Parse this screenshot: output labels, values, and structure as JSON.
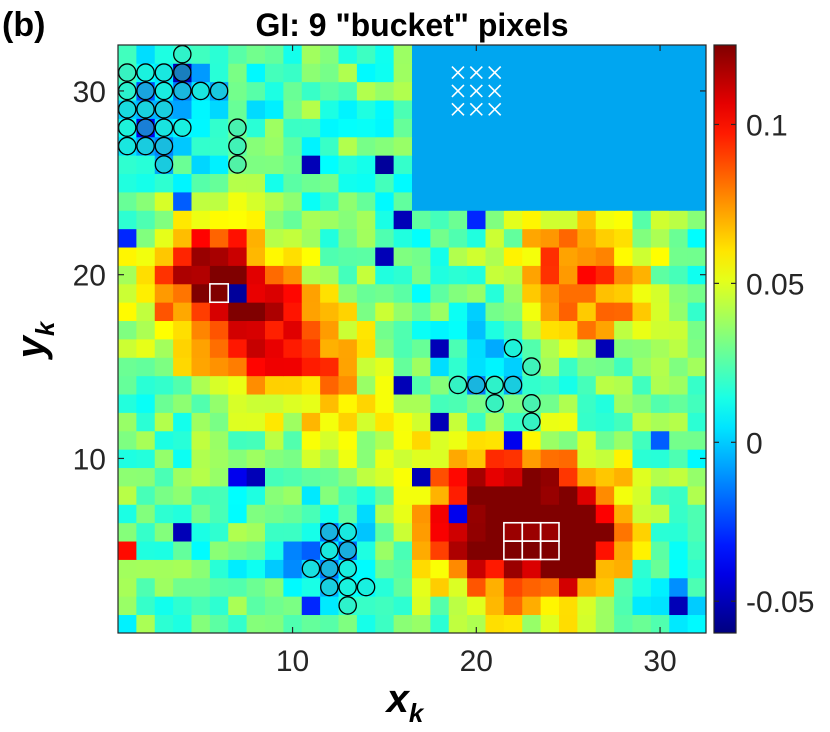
{
  "panel_label": "(b)",
  "chart_data": {
    "type": "heatmap",
    "title": "GI: 9 \"bucket\" pixels",
    "xlabel": "x",
    "xlabel_sub": "k",
    "ylabel": "y",
    "ylabel_sub": "k",
    "xlim": [
      0.5,
      32.5
    ],
    "ylim": [
      0.5,
      32.5
    ],
    "grid_size": 32,
    "xticks": [
      10,
      20,
      30
    ],
    "yticks": [
      10,
      20,
      30
    ],
    "colormap": "jet",
    "clim": [
      -0.06,
      0.125
    ],
    "colorbar": {
      "location": "right",
      "ticks": [
        -0.05,
        0,
        0.05,
        0.1
      ],
      "tick_labels": [
        "-0.05",
        "0",
        "0.05",
        "0.1"
      ]
    },
    "masked_region": {
      "x": [
        17,
        32
      ],
      "y": [
        24,
        32
      ],
      "value": 0.0,
      "note_color": "#00a6f0"
    },
    "hot_spots": [
      {
        "x": 6,
        "y": 19,
        "value": 0.1,
        "r": 2.8
      },
      {
        "x": 9,
        "y": 17,
        "value": 0.06,
        "r": 2.5
      },
      {
        "x": 11,
        "y": 15,
        "value": 0.07,
        "r": 2.8
      },
      {
        "x": 5,
        "y": 21,
        "value": 0.06,
        "r": 2.0
      },
      {
        "x": 15,
        "y": 11,
        "value": 0.04,
        "r": 2.2
      },
      {
        "x": 23,
        "y": 6,
        "value": 0.12,
        "r": 3.0
      },
      {
        "x": 20,
        "y": 7,
        "value": 0.09,
        "r": 2.6
      },
      {
        "x": 26,
        "y": 6,
        "value": 0.1,
        "r": 2.2
      },
      {
        "x": 26,
        "y": 19,
        "value": 0.09,
        "r": 2.6
      },
      {
        "x": 24,
        "y": 21,
        "value": 0.05,
        "r": 1.8
      }
    ],
    "cold_spots": [
      {
        "x": 12,
        "y": 5,
        "value": -0.01,
        "r": 2.0
      },
      {
        "x": 21,
        "y": 15,
        "value": -0.008,
        "r": 2.2
      },
      {
        "x": 3,
        "y": 29,
        "value": -0.01,
        "r": 2.5
      },
      {
        "x": 30,
        "y": 3,
        "value": -0.005,
        "r": 2.0
      }
    ],
    "outlier_pixels": [
      {
        "x": 7,
        "y": 19,
        "value": -0.055
      },
      {
        "x": 6,
        "y": 19,
        "value": 0.125
      },
      {
        "x": 22,
        "y": 5,
        "value": 0.125
      },
      {
        "x": 23,
        "y": 5,
        "value": 0.125
      },
      {
        "x": 24,
        "y": 5,
        "value": 0.125
      },
      {
        "x": 22,
        "y": 6,
        "value": 0.12
      },
      {
        "x": 23,
        "y": 6,
        "value": 0.12
      },
      {
        "x": 24,
        "y": 6,
        "value": 0.12
      },
      {
        "x": 4,
        "y": 31,
        "value": -0.05
      },
      {
        "x": 2,
        "y": 28,
        "value": -0.04
      },
      {
        "x": 11,
        "y": 26,
        "value": -0.05
      },
      {
        "x": 15,
        "y": 26,
        "value": -0.055
      },
      {
        "x": 16,
        "y": 23,
        "value": -0.05
      },
      {
        "x": 1,
        "y": 22,
        "value": -0.03
      },
      {
        "x": 15,
        "y": 21,
        "value": -0.05
      },
      {
        "x": 28,
        "y": 25,
        "value": -0.05
      },
      {
        "x": 29,
        "y": 25,
        "value": -0.05
      },
      {
        "x": 27,
        "y": 26,
        "value": -0.04
      },
      {
        "x": 29,
        "y": 31,
        "value": -0.04
      },
      {
        "x": 30,
        "y": 25,
        "value": -0.03
      },
      {
        "x": 18,
        "y": 16,
        "value": -0.05
      },
      {
        "x": 27,
        "y": 16,
        "value": -0.05
      },
      {
        "x": 16,
        "y": 14,
        "value": -0.05
      },
      {
        "x": 18,
        "y": 12,
        "value": -0.05
      },
      {
        "x": 22,
        "y": 11,
        "value": -0.04
      },
      {
        "x": 7,
        "y": 9,
        "value": -0.04
      },
      {
        "x": 8,
        "y": 9,
        "value": -0.05
      },
      {
        "x": 17,
        "y": 9,
        "value": -0.05
      },
      {
        "x": 19,
        "y": 7,
        "value": -0.04
      },
      {
        "x": 4,
        "y": 6,
        "value": -0.05
      },
      {
        "x": 11,
        "y": 2,
        "value": -0.03
      },
      {
        "x": 31,
        "y": 2,
        "value": -0.05
      },
      {
        "x": 30,
        "y": 11,
        "value": -0.02
      },
      {
        "x": 1,
        "y": 5,
        "value": 0.1
      },
      {
        "x": 20,
        "y": 23,
        "value": -0.03
      },
      {
        "x": 4,
        "y": 24,
        "value": -0.02
      }
    ],
    "bucket_pixels": [
      {
        "x": 19,
        "y": 29
      },
      {
        "x": 20,
        "y": 29
      },
      {
        "x": 21,
        "y": 29
      },
      {
        "x": 19,
        "y": 30
      },
      {
        "x": 20,
        "y": 30
      },
      {
        "x": 21,
        "y": 30
      },
      {
        "x": 19,
        "y": 31
      },
      {
        "x": 20,
        "y": 31
      },
      {
        "x": 21,
        "y": 31
      }
    ],
    "highlighted_squares": [
      {
        "x": 6,
        "y": 19
      },
      {
        "x": 22,
        "y": 6
      },
      {
        "x": 23,
        "y": 6
      },
      {
        "x": 24,
        "y": 6
      },
      {
        "x": 22,
        "y": 5
      },
      {
        "x": 23,
        "y": 5
      },
      {
        "x": 24,
        "y": 5
      }
    ],
    "circled_pixels": [
      {
        "x": 1,
        "y": 31
      },
      {
        "x": 2,
        "y": 31
      },
      {
        "x": 3,
        "y": 31
      },
      {
        "x": 4,
        "y": 32
      },
      {
        "x": 4,
        "y": 31
      },
      {
        "x": 1,
        "y": 30
      },
      {
        "x": 2,
        "y": 30
      },
      {
        "x": 3,
        "y": 30
      },
      {
        "x": 4,
        "y": 30
      },
      {
        "x": 5,
        "y": 30
      },
      {
        "x": 6,
        "y": 30
      },
      {
        "x": 1,
        "y": 29
      },
      {
        "x": 2,
        "y": 29
      },
      {
        "x": 3,
        "y": 29
      },
      {
        "x": 1,
        "y": 28
      },
      {
        "x": 2,
        "y": 28
      },
      {
        "x": 3,
        "y": 28
      },
      {
        "x": 4,
        "y": 28
      },
      {
        "x": 7,
        "y": 28
      },
      {
        "x": 1,
        "y": 27
      },
      {
        "x": 2,
        "y": 27
      },
      {
        "x": 3,
        "y": 27
      },
      {
        "x": 7,
        "y": 27
      },
      {
        "x": 3,
        "y": 26
      },
      {
        "x": 7,
        "y": 26
      },
      {
        "x": 22,
        "y": 16
      },
      {
        "x": 23,
        "y": 15
      },
      {
        "x": 19,
        "y": 14
      },
      {
        "x": 20,
        "y": 14
      },
      {
        "x": 21,
        "y": 14
      },
      {
        "x": 22,
        "y": 14
      },
      {
        "x": 21,
        "y": 13
      },
      {
        "x": 23,
        "y": 13
      },
      {
        "x": 23,
        "y": 12
      },
      {
        "x": 12,
        "y": 6
      },
      {
        "x": 13,
        "y": 6
      },
      {
        "x": 12,
        "y": 5
      },
      {
        "x": 13,
        "y": 5
      },
      {
        "x": 12,
        "y": 4
      },
      {
        "x": 13,
        "y": 4
      },
      {
        "x": 11,
        "y": 4
      },
      {
        "x": 12,
        "y": 3
      },
      {
        "x": 13,
        "y": 3
      },
      {
        "x": 14,
        "y": 3
      },
      {
        "x": 13,
        "y": 2
      }
    ],
    "noise_seed": 7,
    "noise_amplitude": 0.018,
    "base_value": 0.025
  }
}
